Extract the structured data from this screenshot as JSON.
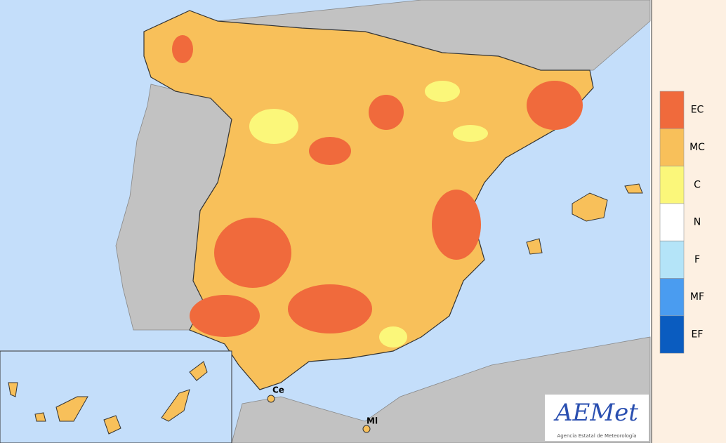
{
  "legend": {
    "items": [
      {
        "label": "EC",
        "color": "#f06a3c"
      },
      {
        "label": "MC",
        "color": "#f8c05a"
      },
      {
        "label": "C",
        "color": "#fbf77a"
      },
      {
        "label": "N",
        "color": "#ffffff"
      },
      {
        "label": "F",
        "color": "#b4e4f8"
      },
      {
        "label": "MF",
        "color": "#4a9cf0"
      },
      {
        "label": "EF",
        "color": "#0a5cc0"
      }
    ]
  },
  "places": [
    {
      "label": "Ce"
    },
    {
      "label": "Ml"
    }
  ],
  "logo": {
    "name": "AEMet",
    "subtitle": "Agencia Estatal de Meteorología"
  }
}
